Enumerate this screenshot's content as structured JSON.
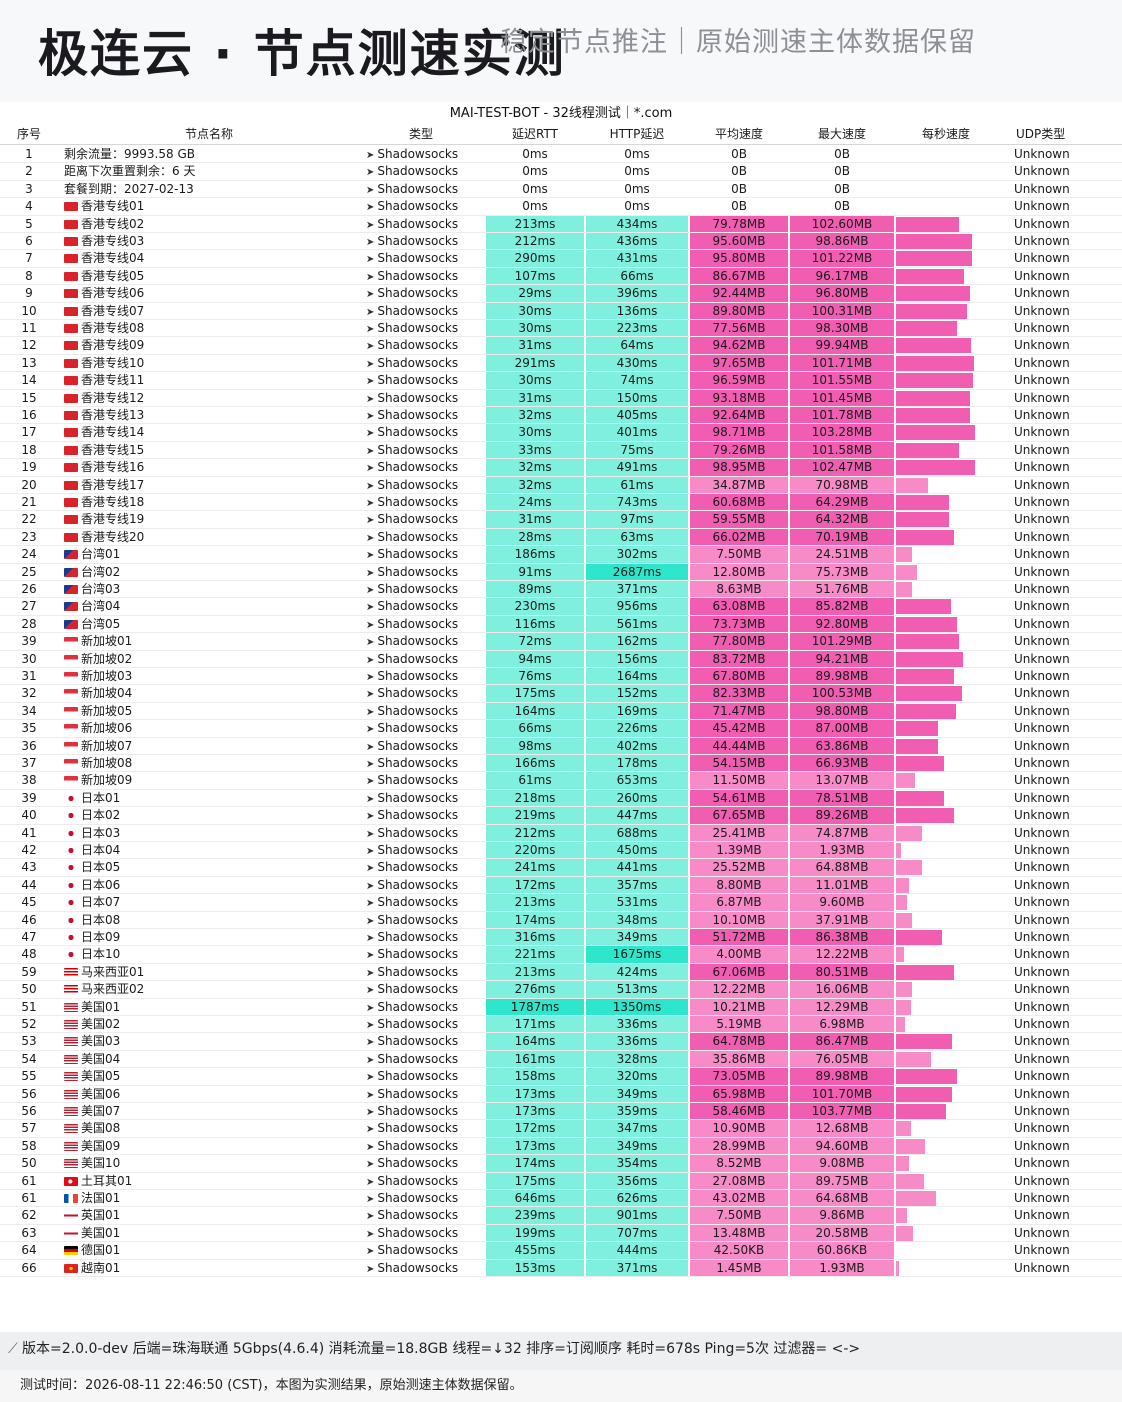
{
  "header": {
    "title": "极连云 · 节点测速实测",
    "subtitle": "稳定节点推注｜原始测速主体数据保留"
  },
  "sheet": {
    "title": "MAI-TEST-BOT - 32线程测试｜*.com",
    "columns": [
      "序号",
      "节点名称",
      "类型",
      "延迟RTT",
      "HTTP延迟",
      "平均速度",
      "最大速度",
      "每秒速度",
      "UDP类型"
    ],
    "colors": {
      "rtt_bg": "#7ff0dd",
      "rtt_hi": "#2ee6cc",
      "speed_bg": "#f78bc8",
      "speed_hi": "#f05db1"
    },
    "rows": [
      {
        "i": "1",
        "n": "剩余流量：9993.58 GB",
        "f": "",
        "t": "Shadowsocks",
        "r": "0ms",
        "h": "0ms",
        "a": "0B",
        "m": "0B",
        "u": "Unknown",
        "s": 0
      },
      {
        "i": "2",
        "n": "距离下次重置剩余：6 天",
        "f": "",
        "t": "Shadowsocks",
        "r": "0ms",
        "h": "0ms",
        "a": "0B",
        "m": "0B",
        "u": "Unknown",
        "s": 0
      },
      {
        "i": "3",
        "n": "套餐到期：2027-02-13",
        "f": "",
        "t": "Shadowsocks",
        "r": "0ms",
        "h": "0ms",
        "a": "0B",
        "m": "0B",
        "u": "Unknown",
        "s": 0
      },
      {
        "i": "4",
        "n": "香港专线01",
        "f": "hk",
        "t": "Shadowsocks",
        "r": "0ms",
        "h": "0ms",
        "a": "0B",
        "m": "0B",
        "u": "Unknown",
        "s": 0
      },
      {
        "i": "5",
        "n": "香港专线02",
        "f": "hk",
        "t": "Shadowsocks",
        "r": "213ms",
        "h": "434ms",
        "a": "79.78MB",
        "m": "102.60MB",
        "u": "Unknown",
        "s": 0.6
      },
      {
        "i": "6",
        "n": "香港专线03",
        "f": "hk",
        "t": "Shadowsocks",
        "r": "212ms",
        "h": "436ms",
        "a": "95.60MB",
        "m": "98.86MB",
        "u": "Unknown",
        "s": 0.72
      },
      {
        "i": "7",
        "n": "香港专线04",
        "f": "hk",
        "t": "Shadowsocks",
        "r": "290ms",
        "h": "431ms",
        "a": "95.80MB",
        "m": "101.22MB",
        "u": "Unknown",
        "s": 0.72
      },
      {
        "i": "8",
        "n": "香港专线05",
        "f": "hk",
        "t": "Shadowsocks",
        "r": "107ms",
        "h": "66ms",
        "a": "86.67MB",
        "m": "96.17MB",
        "u": "Unknown",
        "s": 0.65
      },
      {
        "i": "9",
        "n": "香港专线06",
        "f": "hk",
        "t": "Shadowsocks",
        "r": "29ms",
        "h": "396ms",
        "a": "92.44MB",
        "m": "96.80MB",
        "u": "Unknown",
        "s": 0.7
      },
      {
        "i": "10",
        "n": "香港专线07",
        "f": "hk",
        "t": "Shadowsocks",
        "r": "30ms",
        "h": "136ms",
        "a": "89.80MB",
        "m": "100.31MB",
        "u": "Unknown",
        "s": 0.68
      },
      {
        "i": "11",
        "n": "香港专线08",
        "f": "hk",
        "t": "Shadowsocks",
        "r": "30ms",
        "h": "223ms",
        "a": "77.56MB",
        "m": "98.30MB",
        "u": "Unknown",
        "s": 0.58
      },
      {
        "i": "12",
        "n": "香港专线09",
        "f": "hk",
        "t": "Shadowsocks",
        "r": "31ms",
        "h": "64ms",
        "a": "94.62MB",
        "m": "99.94MB",
        "u": "Unknown",
        "s": 0.71
      },
      {
        "i": "13",
        "n": "香港专线10",
        "f": "hk",
        "t": "Shadowsocks",
        "r": "291ms",
        "h": "430ms",
        "a": "97.65MB",
        "m": "101.71MB",
        "u": "Unknown",
        "s": 0.74
      },
      {
        "i": "14",
        "n": "香港专线11",
        "f": "hk",
        "t": "Shadowsocks",
        "r": "30ms",
        "h": "74ms",
        "a": "96.59MB",
        "m": "101.55MB",
        "u": "Unknown",
        "s": 0.73
      },
      {
        "i": "15",
        "n": "香港专线12",
        "f": "hk",
        "t": "Shadowsocks",
        "r": "31ms",
        "h": "150ms",
        "a": "93.18MB",
        "m": "101.45MB",
        "u": "Unknown",
        "s": 0.7
      },
      {
        "i": "16",
        "n": "香港专线13",
        "f": "hk",
        "t": "Shadowsocks",
        "r": "32ms",
        "h": "405ms",
        "a": "92.64MB",
        "m": "101.78MB",
        "u": "Unknown",
        "s": 0.7
      },
      {
        "i": "17",
        "n": "香港专线14",
        "f": "hk",
        "t": "Shadowsocks",
        "r": "30ms",
        "h": "401ms",
        "a": "98.71MB",
        "m": "103.28MB",
        "u": "Unknown",
        "s": 0.75
      },
      {
        "i": "18",
        "n": "香港专线15",
        "f": "hk",
        "t": "Shadowsocks",
        "r": "33ms",
        "h": "75ms",
        "a": "79.26MB",
        "m": "101.58MB",
        "u": "Unknown",
        "s": 0.6
      },
      {
        "i": "19",
        "n": "香港专线16",
        "f": "hk",
        "t": "Shadowsocks",
        "r": "32ms",
        "h": "491ms",
        "a": "98.95MB",
        "m": "102.47MB",
        "u": "Unknown",
        "s": 0.75
      },
      {
        "i": "20",
        "n": "香港专线17",
        "f": "hk",
        "t": "Shadowsocks",
        "r": "32ms",
        "h": "61ms",
        "a": "34.87MB",
        "m": "70.98MB",
        "u": "Unknown",
        "s": 0.3
      },
      {
        "i": "21",
        "n": "香港专线18",
        "f": "hk",
        "t": "Shadowsocks",
        "r": "24ms",
        "h": "743ms",
        "a": "60.68MB",
        "m": "64.29MB",
        "u": "Unknown",
        "s": 0.5
      },
      {
        "i": "22",
        "n": "香港专线19",
        "f": "hk",
        "t": "Shadowsocks",
        "r": "31ms",
        "h": "97ms",
        "a": "59.55MB",
        "m": "64.32MB",
        "u": "Unknown",
        "s": 0.5
      },
      {
        "i": "23",
        "n": "香港专线20",
        "f": "hk",
        "t": "Shadowsocks",
        "r": "28ms",
        "h": "63ms",
        "a": "66.02MB",
        "m": "70.19MB",
        "u": "Unknown",
        "s": 0.55
      },
      {
        "i": "24",
        "n": "台湾01",
        "f": "tw",
        "t": "Shadowsocks",
        "r": "186ms",
        "h": "302ms",
        "a": "7.50MB",
        "m": "24.51MB",
        "u": "Unknown",
        "s": 0.15
      },
      {
        "i": "25",
        "n": "台湾02",
        "f": "tw",
        "t": "Shadowsocks",
        "r": "91ms",
        "h": "2687ms",
        "a": "12.80MB",
        "m": "75.73MB",
        "u": "Unknown",
        "s": 0.2
      },
      {
        "i": "26",
        "n": "台湾03",
        "f": "tw",
        "t": "Shadowsocks",
        "r": "89ms",
        "h": "371ms",
        "a": "8.63MB",
        "m": "51.76MB",
        "u": "Unknown",
        "s": 0.15
      },
      {
        "i": "27",
        "n": "台湾04",
        "f": "tw",
        "t": "Shadowsocks",
        "r": "230ms",
        "h": "956ms",
        "a": "63.08MB",
        "m": "85.82MB",
        "u": "Unknown",
        "s": 0.52
      },
      {
        "i": "28",
        "n": "台湾05",
        "f": "tw",
        "t": "Shadowsocks",
        "r": "116ms",
        "h": "561ms",
        "a": "73.73MB",
        "m": "92.80MB",
        "u": "Unknown",
        "s": 0.58
      },
      {
        "i": "39",
        "n": "新加坡01",
        "f": "sg",
        "t": "Shadowsocks",
        "r": "72ms",
        "h": "162ms",
        "a": "77.80MB",
        "m": "101.29MB",
        "u": "Unknown",
        "s": 0.6
      },
      {
        "i": "30",
        "n": "新加坡02",
        "f": "sg",
        "t": "Shadowsocks",
        "r": "94ms",
        "h": "156ms",
        "a": "83.72MB",
        "m": "94.21MB",
        "u": "Unknown",
        "s": 0.64
      },
      {
        "i": "31",
        "n": "新加坡03",
        "f": "sg",
        "t": "Shadowsocks",
        "r": "76ms",
        "h": "164ms",
        "a": "67.80MB",
        "m": "89.98MB",
        "u": "Unknown",
        "s": 0.55
      },
      {
        "i": "32",
        "n": "新加坡04",
        "f": "sg",
        "t": "Shadowsocks",
        "r": "175ms",
        "h": "152ms",
        "a": "82.33MB",
        "m": "100.53MB",
        "u": "Unknown",
        "s": 0.63
      },
      {
        "i": "34",
        "n": "新加坡05",
        "f": "sg",
        "t": "Shadowsocks",
        "r": "164ms",
        "h": "169ms",
        "a": "71.47MB",
        "m": "98.80MB",
        "u": "Unknown",
        "s": 0.57
      },
      {
        "i": "35",
        "n": "新加坡06",
        "f": "sg",
        "t": "Shadowsocks",
        "r": "66ms",
        "h": "226ms",
        "a": "45.42MB",
        "m": "87.00MB",
        "u": "Unknown",
        "s": 0.4
      },
      {
        "i": "36",
        "n": "新加坡07",
        "f": "sg",
        "t": "Shadowsocks",
        "r": "98ms",
        "h": "402ms",
        "a": "44.44MB",
        "m": "63.86MB",
        "u": "Unknown",
        "s": 0.4
      },
      {
        "i": "37",
        "n": "新加坡08",
        "f": "sg",
        "t": "Shadowsocks",
        "r": "166ms",
        "h": "178ms",
        "a": "54.15MB",
        "m": "66.93MB",
        "u": "Unknown",
        "s": 0.46
      },
      {
        "i": "38",
        "n": "新加坡09",
        "f": "sg",
        "t": "Shadowsocks",
        "r": "61ms",
        "h": "653ms",
        "a": "11.50MB",
        "m": "13.07MB",
        "u": "Unknown",
        "s": 0.18
      },
      {
        "i": "39",
        "n": "日本01",
        "f": "jp",
        "t": "Shadowsocks",
        "r": "218ms",
        "h": "260ms",
        "a": "54.61MB",
        "m": "78.51MB",
        "u": "Unknown",
        "s": 0.46
      },
      {
        "i": "40",
        "n": "日本02",
        "f": "jp",
        "t": "Shadowsocks",
        "r": "219ms",
        "h": "447ms",
        "a": "67.65MB",
        "m": "89.26MB",
        "u": "Unknown",
        "s": 0.55
      },
      {
        "i": "41",
        "n": "日本03",
        "f": "jp",
        "t": "Shadowsocks",
        "r": "212ms",
        "h": "688ms",
        "a": "25.41MB",
        "m": "74.87MB",
        "u": "Unknown",
        "s": 0.25
      },
      {
        "i": "42",
        "n": "日本04",
        "f": "jp",
        "t": "Shadowsocks",
        "r": "220ms",
        "h": "450ms",
        "a": "1.39MB",
        "m": "1.93MB",
        "u": "Unknown",
        "s": 0.05
      },
      {
        "i": "43",
        "n": "日本05",
        "f": "jp",
        "t": "Shadowsocks",
        "r": "241ms",
        "h": "441ms",
        "a": "25.52MB",
        "m": "64.88MB",
        "u": "Unknown",
        "s": 0.25
      },
      {
        "i": "44",
        "n": "日本06",
        "f": "jp",
        "t": "Shadowsocks",
        "r": "172ms",
        "h": "357ms",
        "a": "8.80MB",
        "m": "11.01MB",
        "u": "Unknown",
        "s": 0.12
      },
      {
        "i": "45",
        "n": "日本07",
        "f": "jp",
        "t": "Shadowsocks",
        "r": "213ms",
        "h": "531ms",
        "a": "6.87MB",
        "m": "9.60MB",
        "u": "Unknown",
        "s": 0.1
      },
      {
        "i": "46",
        "n": "日本08",
        "f": "jp",
        "t": "Shadowsocks",
        "r": "174ms",
        "h": "348ms",
        "a": "10.10MB",
        "m": "37.91MB",
        "u": "Unknown",
        "s": 0.15
      },
      {
        "i": "47",
        "n": "日本09",
        "f": "jp",
        "t": "Shadowsocks",
        "r": "316ms",
        "h": "349ms",
        "a": "51.72MB",
        "m": "86.38MB",
        "u": "Unknown",
        "s": 0.44
      },
      {
        "i": "48",
        "n": "日本10",
        "f": "jp",
        "t": "Shadowsocks",
        "r": "221ms",
        "h": "1675ms",
        "a": "4.00MB",
        "m": "12.22MB",
        "u": "Unknown",
        "s": 0.08
      },
      {
        "i": "59",
        "n": "马来西亚01",
        "f": "my",
        "t": "Shadowsocks",
        "r": "213ms",
        "h": "424ms",
        "a": "67.06MB",
        "m": "80.51MB",
        "u": "Unknown",
        "s": 0.55
      },
      {
        "i": "50",
        "n": "马来西亚02",
        "f": "my",
        "t": "Shadowsocks",
        "r": "276ms",
        "h": "513ms",
        "a": "12.22MB",
        "m": "16.06MB",
        "u": "Unknown",
        "s": 0.15
      },
      {
        "i": "51",
        "n": "美国01",
        "f": "us",
        "t": "Shadowsocks",
        "r": "1787ms",
        "h": "1350ms",
        "a": "10.21MB",
        "m": "12.29MB",
        "u": "Unknown",
        "s": 0.14
      },
      {
        "i": "52",
        "n": "美国02",
        "f": "us",
        "t": "Shadowsocks",
        "r": "171ms",
        "h": "336ms",
        "a": "5.19MB",
        "m": "6.98MB",
        "u": "Unknown",
        "s": 0.09
      },
      {
        "i": "53",
        "n": "美国03",
        "f": "us",
        "t": "Shadowsocks",
        "r": "164ms",
        "h": "336ms",
        "a": "64.78MB",
        "m": "86.47MB",
        "u": "Unknown",
        "s": 0.53
      },
      {
        "i": "54",
        "n": "美国04",
        "f": "us",
        "t": "Shadowsocks",
        "r": "161ms",
        "h": "328ms",
        "a": "35.86MB",
        "m": "76.05MB",
        "u": "Unknown",
        "s": 0.33
      },
      {
        "i": "55",
        "n": "美国05",
        "f": "us",
        "t": "Shadowsocks",
        "r": "158ms",
        "h": "320ms",
        "a": "73.05MB",
        "m": "89.98MB",
        "u": "Unknown",
        "s": 0.58
      },
      {
        "i": "56",
        "n": "美国06",
        "f": "us",
        "t": "Shadowsocks",
        "r": "173ms",
        "h": "349ms",
        "a": "65.98MB",
        "m": "101.70MB",
        "u": "Unknown",
        "s": 0.53
      },
      {
        "i": "56",
        "n": "美国07",
        "f": "us",
        "t": "Shadowsocks",
        "r": "173ms",
        "h": "359ms",
        "a": "58.46MB",
        "m": "103.77MB",
        "u": "Unknown",
        "s": 0.48
      },
      {
        "i": "57",
        "n": "美国08",
        "f": "us",
        "t": "Shadowsocks",
        "r": "172ms",
        "h": "347ms",
        "a": "10.90MB",
        "m": "12.68MB",
        "u": "Unknown",
        "s": 0.14
      },
      {
        "i": "58",
        "n": "美国09",
        "f": "us",
        "t": "Shadowsocks",
        "r": "173ms",
        "h": "349ms",
        "a": "28.99MB",
        "m": "94.60MB",
        "u": "Unknown",
        "s": 0.28
      },
      {
        "i": "50",
        "n": "美国10",
        "f": "us",
        "t": "Shadowsocks",
        "r": "174ms",
        "h": "354ms",
        "a": "8.52MB",
        "m": "9.08MB",
        "u": "Unknown",
        "s": 0.12
      },
      {
        "i": "61",
        "n": "土耳其01",
        "f": "tr",
        "t": "Shadowsocks",
        "r": "175ms",
        "h": "356ms",
        "a": "27.08MB",
        "m": "89.75MB",
        "u": "Unknown",
        "s": 0.27
      },
      {
        "i": "61",
        "n": "法国01",
        "f": "fr",
        "t": "Shadowsocks",
        "r": "646ms",
        "h": "626ms",
        "a": "43.02MB",
        "m": "64.68MB",
        "u": "Unknown",
        "s": 0.38
      },
      {
        "i": "62",
        "n": "英国01",
        "f": "gb",
        "t": "Shadowsocks",
        "r": "239ms",
        "h": "901ms",
        "a": "7.50MB",
        "m": "9.86MB",
        "u": "Unknown",
        "s": 0.1
      },
      {
        "i": "63",
        "n": "美国01",
        "f": "gb",
        "t": "Shadowsocks",
        "r": "199ms",
        "h": "707ms",
        "a": "13.48MB",
        "m": "20.58MB",
        "u": "Unknown",
        "s": 0.16
      },
      {
        "i": "64",
        "n": "德国01",
        "f": "de",
        "t": "Shadowsocks",
        "r": "455ms",
        "h": "444ms",
        "a": "42.50KB",
        "m": "60.86KB",
        "u": "Unknown",
        "s": 0
      },
      {
        "i": "66",
        "n": "越南01",
        "f": "vn",
        "t": "Shadowsocks",
        "r": "153ms",
        "h": "371ms",
        "a": "1.45MB",
        "m": "1.93MB",
        "u": "Unknown",
        "s": 0.03
      }
    ]
  },
  "footer": {
    "line1": "版本=2.0.0-dev  后端=珠海联通 5Gbps(4.6.4) 消耗流量=18.8GB  线程=↓32  排序=订阅顺序  耗时=678s  Ping=5次  过滤器= <->",
    "line2": "测试时间：2026-08-11  22:46:50 (CST)，本图为实测结果，原始测速主体数据保留。"
  }
}
